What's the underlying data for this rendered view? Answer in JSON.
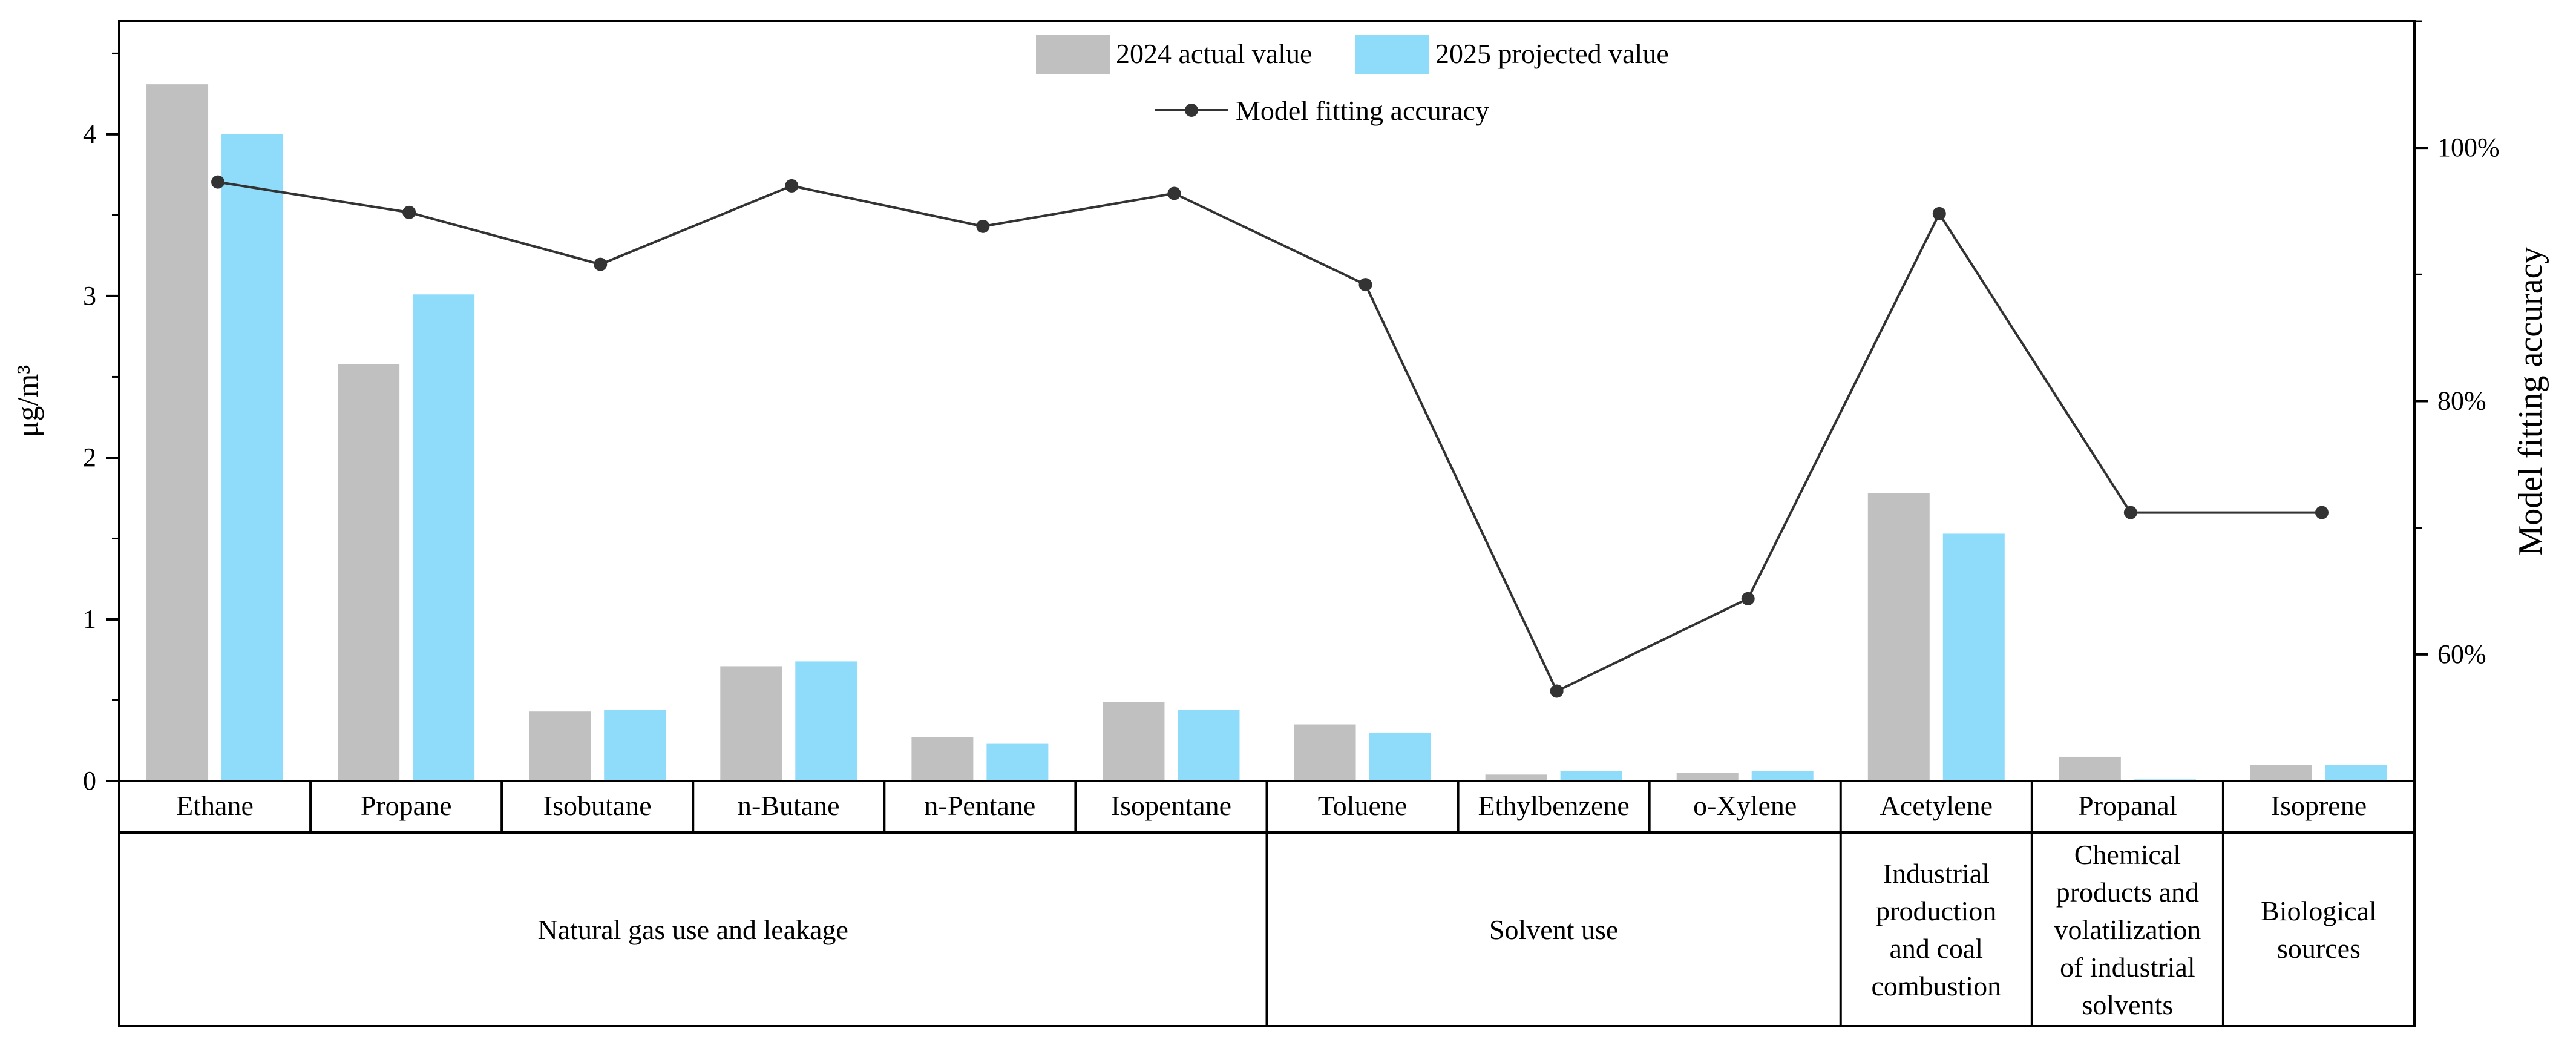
{
  "chart_data": {
    "type": "bar",
    "categories": [
      "Ethane",
      "Propane",
      "Isobutane",
      "n-Butane",
      "n-Pentane",
      "Isopentane",
      "Toluene",
      "Ethylbenzene",
      "o-Xylene",
      "Acetylene",
      "Propanal",
      "Isoprene"
    ],
    "series": [
      {
        "name": "2024 actual value",
        "axis": "left",
        "color": "#c0c0c0",
        "values": [
          4.31,
          2.58,
          0.43,
          0.71,
          0.27,
          0.49,
          0.35,
          0.04,
          0.05,
          1.78,
          0.15,
          0.1
        ]
      },
      {
        "name": "2025 projected value",
        "axis": "left",
        "color": "#8fdcfa",
        "values": [
          4.0,
          3.01,
          0.44,
          0.74,
          0.23,
          0.44,
          0.3,
          0.06,
          0.06,
          1.53,
          0.01,
          0.1
        ]
      },
      {
        "name": "Model fitting accuracy",
        "axis": "right",
        "type": "line",
        "color": "#333333",
        "values": [
          97.3,
          94.9,
          90.8,
          97.0,
          93.8,
          96.4,
          89.2,
          57.1,
          64.4,
          94.8,
          71.2,
          71.2
        ]
      }
    ],
    "ylabel": "μg/m³",
    "ylim": [
      0,
      4.7
    ],
    "yticks": [
      "0",
      "1",
      "2",
      "3",
      "4"
    ],
    "y2label": "Model fitting accuracy",
    "y2lim": [
      50,
      110
    ],
    "y2ticks": [
      "60%",
      "80%",
      "100%"
    ],
    "groups": [
      {
        "label": "Natural gas use and leakage",
        "span": 6,
        "lines": [
          "Natural gas use and leakage"
        ]
      },
      {
        "label": "Solvent use",
        "span": 3,
        "lines": [
          "Solvent use"
        ]
      },
      {
        "label": "Industrial production and coal combustion",
        "span": 1,
        "lines": [
          "Industrial",
          "production",
          "and coal",
          "combustion"
        ]
      },
      {
        "label": "Chemical products and volatilization of industrial solvents",
        "span": 1,
        "lines": [
          "Chemical",
          "products and",
          "volatilization",
          "of industrial",
          "solvents"
        ]
      },
      {
        "label": "Biological sources",
        "span": 1,
        "lines": [
          "Biological",
          "sources"
        ]
      }
    ],
    "legend_position": "top-center"
  }
}
